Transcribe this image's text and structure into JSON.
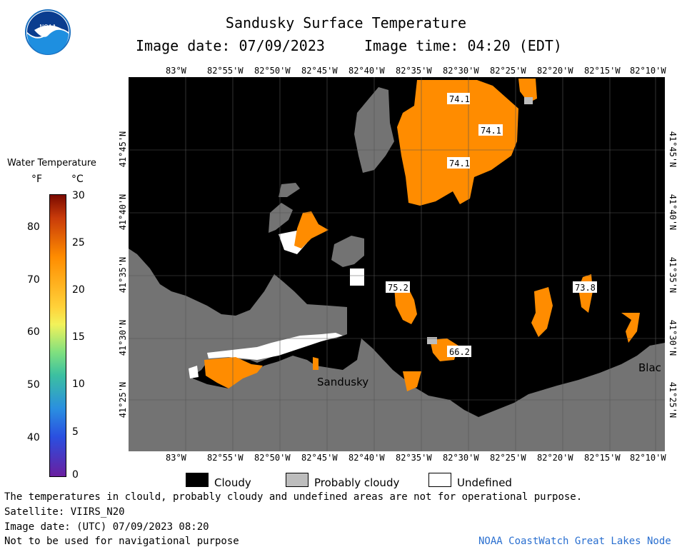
{
  "header": {
    "title": "Sandusky Surface Temperature",
    "image_date": "Image date: 07/09/2023",
    "image_time": "Image time: 04:20 (EDT)"
  },
  "logo": {
    "text": "NOAA",
    "icon": "noaa-logo-icon"
  },
  "colors": {
    "cloudy": "#000000",
    "probably_cloudy": "#bdbdbd",
    "undefined": "#ffffff",
    "land": "#737373",
    "warm": "#ff8c00"
  },
  "axes": {
    "lon_top": [
      "83°W",
      "82°55'W",
      "82°50'W",
      "82°45'W",
      "82°40'W",
      "82°35'W",
      "82°30'W",
      "82°25'W",
      "82°20'W",
      "82°15'W",
      "82°10'W"
    ],
    "lon_bottom": [
      "83°W",
      "82°55'W",
      "82°50'W",
      "82°45'W",
      "82°40'W",
      "82°35'W",
      "82°30'W",
      "82°25'W",
      "82°20'W",
      "82°15'W",
      "82°10'W"
    ],
    "lat_left": [
      "41°45'N",
      "41°40'N",
      "41°35'N",
      "41°30'N",
      "41°25'N"
    ],
    "lat_right": [
      "41°45'N",
      "41°40'N",
      "41°35'N",
      "41°30'N",
      "41°25'N"
    ]
  },
  "map_labels": {
    "temps": [
      "74.1",
      "74.1",
      "74.1",
      "75.2",
      "73.8",
      "66.2"
    ],
    "places": [
      "Sandusky",
      "Blac"
    ]
  },
  "scale": {
    "title": "Water Temperature",
    "unit_f": "°F",
    "unit_c": "°C",
    "f_ticks": [
      "80",
      "70",
      "60",
      "50",
      "40"
    ],
    "c_ticks": [
      "30",
      "25",
      "20",
      "15",
      "10",
      "5",
      "0"
    ]
  },
  "key": {
    "cloudy": "Cloudy",
    "probably_cloudy": "Probably cloudy",
    "undefined": "Undefined"
  },
  "footer": {
    "note": "The temperatures in clould, probably cloudy and undefined areas are not for operational purpose.",
    "satellite": "Satellite: VIIRS_N20",
    "utc_date": "Image date: (UTC) 07/09/2023  08:20",
    "nav_warning": "Not to be used for navigational purpose",
    "credit": "NOAA CoastWatch Great Lakes Node"
  }
}
